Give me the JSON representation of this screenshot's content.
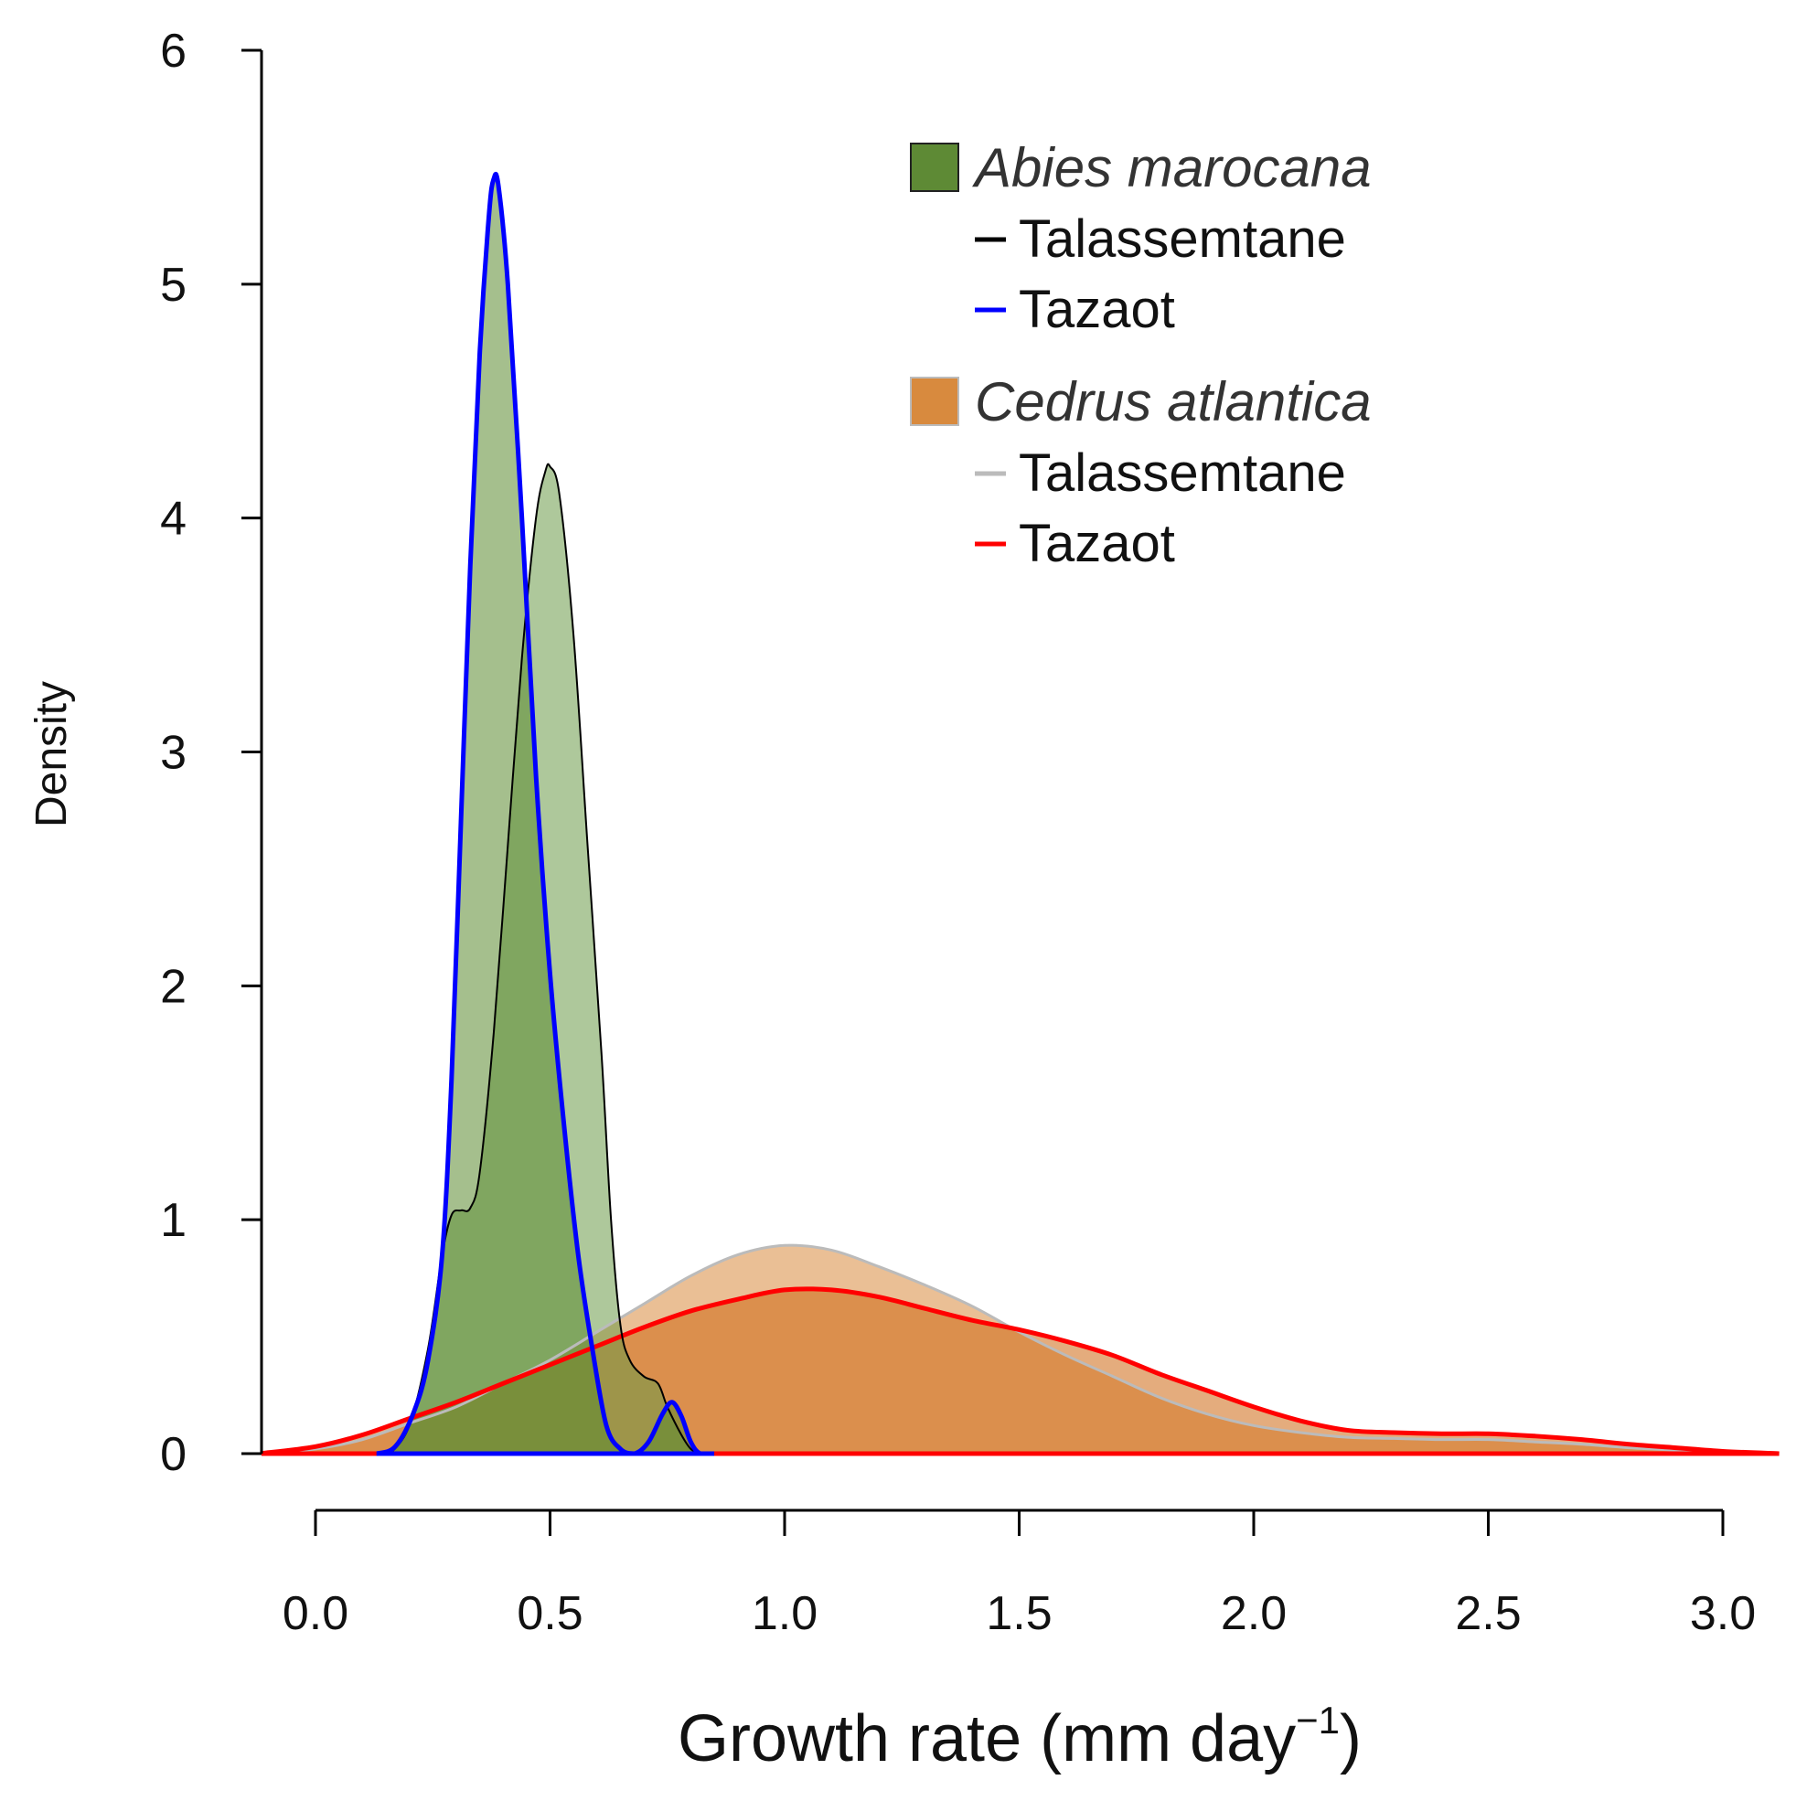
{
  "chart_data": {
    "type": "area",
    "title": "",
    "xlabel": "Growth rate (mm day",
    "xlabel_superscript": "−1",
    "xlabel_close": ")",
    "ylabel": "Density",
    "xlim": [
      -0.12,
      3.12
    ],
    "ylim": [
      0,
      6
    ],
    "x_ticks": [
      "0.0",
      "0.5",
      "1.0",
      "1.5",
      "2.0",
      "2.5",
      "3.0"
    ],
    "y_ticks": [
      "0",
      "1",
      "2",
      "3",
      "4",
      "5",
      "6"
    ],
    "legend": {
      "placement": "top-right",
      "groups": [
        {
          "species": "Abies marocana",
          "swatch_color": "#5e8a35",
          "entries": [
            {
              "label": "Talassemtane",
              "color": "#000000"
            },
            {
              "label": "Tazaot",
              "color": "#0000ff"
            }
          ]
        },
        {
          "species": "Cedrus atlantica",
          "swatch_color": "#d88a3e",
          "entries": [
            {
              "label": "Talassemtane",
              "color": "#bbbbbb"
            },
            {
              "label": "Tazaot",
              "color": "#ff0000"
            }
          ]
        }
      ]
    },
    "series": [
      {
        "name": "Cedrus atlantica - Talassemtane",
        "fill": "#d88a3e",
        "stroke": "#bbbbbb",
        "stroke_width": 3,
        "points": [
          [
            -0.12,
            0
          ],
          [
            0.0,
            0.02
          ],
          [
            0.1,
            0.06
          ],
          [
            0.2,
            0.13
          ],
          [
            0.3,
            0.2
          ],
          [
            0.4,
            0.3
          ],
          [
            0.5,
            0.4
          ],
          [
            0.6,
            0.52
          ],
          [
            0.7,
            0.64
          ],
          [
            0.8,
            0.76
          ],
          [
            0.9,
            0.85
          ],
          [
            1.0,
            0.89
          ],
          [
            1.1,
            0.87
          ],
          [
            1.2,
            0.8
          ],
          [
            1.3,
            0.72
          ],
          [
            1.4,
            0.63
          ],
          [
            1.5,
            0.52
          ],
          [
            1.6,
            0.42
          ],
          [
            1.7,
            0.33
          ],
          [
            1.8,
            0.24
          ],
          [
            1.9,
            0.17
          ],
          [
            2.0,
            0.12
          ],
          [
            2.1,
            0.09
          ],
          [
            2.2,
            0.07
          ],
          [
            2.3,
            0.065
          ],
          [
            2.4,
            0.06
          ],
          [
            2.5,
            0.06
          ],
          [
            2.6,
            0.05
          ],
          [
            2.7,
            0.04
          ],
          [
            2.8,
            0.025
          ],
          [
            2.9,
            0.015
          ],
          [
            3.0,
            0.005
          ],
          [
            3.12,
            0
          ]
        ]
      },
      {
        "name": "Cedrus atlantica - Tazaot",
        "fill": "#ce6812",
        "stroke": "#ff0000",
        "stroke_width": 5,
        "points": [
          [
            -0.12,
            0
          ],
          [
            0.0,
            0.03
          ],
          [
            0.1,
            0.08
          ],
          [
            0.2,
            0.15
          ],
          [
            0.3,
            0.22
          ],
          [
            0.4,
            0.3
          ],
          [
            0.5,
            0.38
          ],
          [
            0.6,
            0.46
          ],
          [
            0.7,
            0.54
          ],
          [
            0.8,
            0.61
          ],
          [
            0.9,
            0.66
          ],
          [
            1.0,
            0.7
          ],
          [
            1.1,
            0.7
          ],
          [
            1.2,
            0.67
          ],
          [
            1.3,
            0.62
          ],
          [
            1.4,
            0.57
          ],
          [
            1.5,
            0.53
          ],
          [
            1.6,
            0.48
          ],
          [
            1.7,
            0.42
          ],
          [
            1.8,
            0.34
          ],
          [
            1.9,
            0.27
          ],
          [
            2.0,
            0.2
          ],
          [
            2.1,
            0.14
          ],
          [
            2.2,
            0.1
          ],
          [
            2.3,
            0.09
          ],
          [
            2.4,
            0.085
          ],
          [
            2.5,
            0.085
          ],
          [
            2.6,
            0.075
          ],
          [
            2.7,
            0.06
          ],
          [
            2.8,
            0.04
          ],
          [
            2.9,
            0.025
          ],
          [
            3.0,
            0.01
          ],
          [
            3.12,
            0
          ]
        ]
      },
      {
        "name": "Abies marocana - Talassemtane",
        "fill": "#6b9a48",
        "stroke": "#000000",
        "stroke_width": 2,
        "points": [
          [
            0.16,
            0
          ],
          [
            0.2,
            0.12
          ],
          [
            0.24,
            0.45
          ],
          [
            0.27,
            0.85
          ],
          [
            0.29,
            1.02
          ],
          [
            0.31,
            1.04
          ],
          [
            0.33,
            1.05
          ],
          [
            0.35,
            1.2
          ],
          [
            0.38,
            1.8
          ],
          [
            0.41,
            2.6
          ],
          [
            0.44,
            3.4
          ],
          [
            0.47,
            4.0
          ],
          [
            0.49,
            4.2
          ],
          [
            0.5,
            4.22
          ],
          [
            0.52,
            4.1
          ],
          [
            0.55,
            3.5
          ],
          [
            0.58,
            2.6
          ],
          [
            0.61,
            1.7
          ],
          [
            0.63,
            1.0
          ],
          [
            0.65,
            0.55
          ],
          [
            0.67,
            0.4
          ],
          [
            0.7,
            0.33
          ],
          [
            0.73,
            0.3
          ],
          [
            0.75,
            0.2
          ],
          [
            0.78,
            0.08
          ],
          [
            0.8,
            0.02
          ],
          [
            0.82,
            0
          ]
        ]
      },
      {
        "name": "Abies marocana - Tazaot",
        "fill": "#5b8a30",
        "stroke": "#0000ff",
        "stroke_width": 5,
        "points": [
          [
            0.13,
            0
          ],
          [
            0.17,
            0.03
          ],
          [
            0.21,
            0.18
          ],
          [
            0.24,
            0.4
          ],
          [
            0.27,
            0.85
          ],
          [
            0.29,
            1.6
          ],
          [
            0.31,
            2.7
          ],
          [
            0.33,
            3.8
          ],
          [
            0.35,
            4.7
          ],
          [
            0.37,
            5.3
          ],
          [
            0.38,
            5.45
          ],
          [
            0.39,
            5.42
          ],
          [
            0.41,
            5.0
          ],
          [
            0.44,
            4.0
          ],
          [
            0.47,
            2.9
          ],
          [
            0.5,
            2.05
          ],
          [
            0.53,
            1.4
          ],
          [
            0.56,
            0.85
          ],
          [
            0.59,
            0.45
          ],
          [
            0.62,
            0.12
          ],
          [
            0.65,
            0.02
          ],
          [
            0.68,
            0.0
          ],
          [
            0.71,
            0.05
          ],
          [
            0.74,
            0.17
          ],
          [
            0.76,
            0.22
          ],
          [
            0.78,
            0.16
          ],
          [
            0.8,
            0.05
          ],
          [
            0.82,
            0.0
          ],
          [
            0.85,
            0
          ]
        ]
      }
    ]
  }
}
